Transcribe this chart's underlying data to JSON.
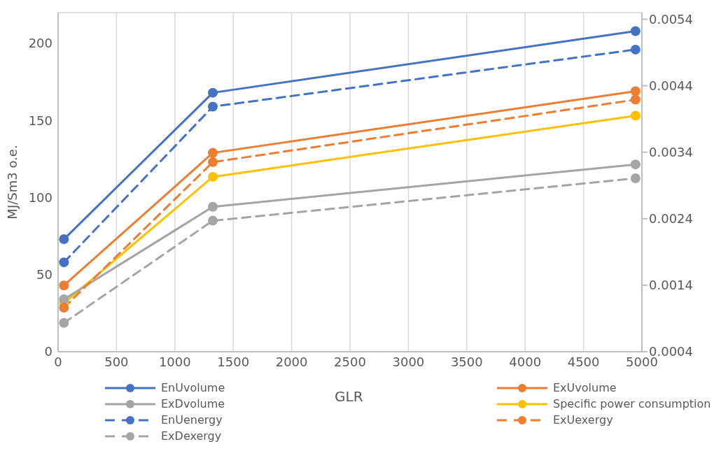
{
  "chart_data": {
    "type": "line",
    "xlabel": "GLR",
    "ylabel": "MJ/Sm3 o.e.",
    "x": [
      50,
      1325,
      4945
    ],
    "xlim": [
      0,
      5000
    ],
    "xticks": [
      0,
      500,
      1000,
      1500,
      2000,
      2500,
      3000,
      3500,
      4000,
      4500,
      5000
    ],
    "ylim": [
      0,
      220
    ],
    "yticks": [
      0,
      50,
      100,
      150,
      200
    ],
    "y2lim": [
      0.0004,
      0.0055
    ],
    "y2ticks": [
      0.0004,
      0.0014,
      0.0024,
      0.0034,
      0.0044,
      0.0054
    ],
    "grid": true,
    "legend": "bottom",
    "marker": "circle",
    "series": [
      {
        "name": "EnUvolume",
        "color": "#4472c4",
        "values": [
          73,
          168,
          208
        ],
        "line_style": "solid"
      },
      {
        "name": "ExUvolume",
        "color": "#ed7d31",
        "values": [
          43,
          129,
          169
        ],
        "line_style": "solid"
      },
      {
        "name": "ExDvolume",
        "color": "#a5a5a5",
        "values": [
          34,
          94,
          121.5
        ],
        "line_style": "solid"
      },
      {
        "name": "Specific power consumption",
        "color": "#ffc000",
        "values": [
          0.00113,
          0.00303,
          0.00395
        ],
        "line_style": "solid",
        "axis": "y2"
      },
      {
        "name": "EnUenergy",
        "color": "#4472c4",
        "values": [
          58,
          159,
          196
        ],
        "line_style": "dashed"
      },
      {
        "name": "ExUexergy",
        "color": "#ed7d31",
        "values": [
          28.6,
          123,
          163.5
        ],
        "line_style": "dashed"
      },
      {
        "name": "ExDexergy",
        "color": "#a5a5a5",
        "values": [
          18.7,
          85,
          112.5
        ],
        "line_style": "dashed"
      }
    ]
  }
}
